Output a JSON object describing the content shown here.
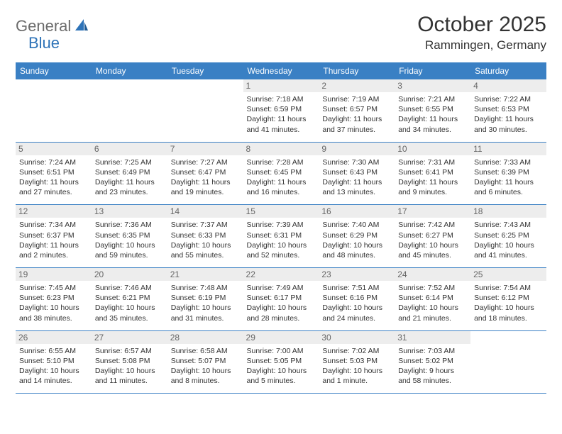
{
  "logo": {
    "general": "General",
    "blue": "Blue"
  },
  "title": "October 2025",
  "location": "Rammingen, Germany",
  "colors": {
    "header_bg": "#3a80c4",
    "header_text": "#ffffff",
    "daynum_bg": "#ededed",
    "daynum_text": "#666666",
    "border": "#3a80c4",
    "logo_gray": "#6b6b6b",
    "logo_blue": "#2e73b8",
    "body_text": "#333333",
    "background": "#ffffff"
  },
  "typography": {
    "title_fontsize": 30,
    "location_fontsize": 17,
    "dayhead_fontsize": 12,
    "daynum_fontsize": 12,
    "cell_fontsize": 10.5,
    "logo_fontsize": 22
  },
  "layout": {
    "columns": 7,
    "rows": 5,
    "month_start_weekday": 3
  },
  "day_headers": [
    "Sunday",
    "Monday",
    "Tuesday",
    "Wednesday",
    "Thursday",
    "Friday",
    "Saturday"
  ],
  "days": [
    {
      "n": 1,
      "sunrise": "7:18 AM",
      "sunset": "6:59 PM",
      "daylight": "11 hours and 41 minutes."
    },
    {
      "n": 2,
      "sunrise": "7:19 AM",
      "sunset": "6:57 PM",
      "daylight": "11 hours and 37 minutes."
    },
    {
      "n": 3,
      "sunrise": "7:21 AM",
      "sunset": "6:55 PM",
      "daylight": "11 hours and 34 minutes."
    },
    {
      "n": 4,
      "sunrise": "7:22 AM",
      "sunset": "6:53 PM",
      "daylight": "11 hours and 30 minutes."
    },
    {
      "n": 5,
      "sunrise": "7:24 AM",
      "sunset": "6:51 PM",
      "daylight": "11 hours and 27 minutes."
    },
    {
      "n": 6,
      "sunrise": "7:25 AM",
      "sunset": "6:49 PM",
      "daylight": "11 hours and 23 minutes."
    },
    {
      "n": 7,
      "sunrise": "7:27 AM",
      "sunset": "6:47 PM",
      "daylight": "11 hours and 19 minutes."
    },
    {
      "n": 8,
      "sunrise": "7:28 AM",
      "sunset": "6:45 PM",
      "daylight": "11 hours and 16 minutes."
    },
    {
      "n": 9,
      "sunrise": "7:30 AM",
      "sunset": "6:43 PM",
      "daylight": "11 hours and 13 minutes."
    },
    {
      "n": 10,
      "sunrise": "7:31 AM",
      "sunset": "6:41 PM",
      "daylight": "11 hours and 9 minutes."
    },
    {
      "n": 11,
      "sunrise": "7:33 AM",
      "sunset": "6:39 PM",
      "daylight": "11 hours and 6 minutes."
    },
    {
      "n": 12,
      "sunrise": "7:34 AM",
      "sunset": "6:37 PM",
      "daylight": "11 hours and 2 minutes."
    },
    {
      "n": 13,
      "sunrise": "7:36 AM",
      "sunset": "6:35 PM",
      "daylight": "10 hours and 59 minutes."
    },
    {
      "n": 14,
      "sunrise": "7:37 AM",
      "sunset": "6:33 PM",
      "daylight": "10 hours and 55 minutes."
    },
    {
      "n": 15,
      "sunrise": "7:39 AM",
      "sunset": "6:31 PM",
      "daylight": "10 hours and 52 minutes."
    },
    {
      "n": 16,
      "sunrise": "7:40 AM",
      "sunset": "6:29 PM",
      "daylight": "10 hours and 48 minutes."
    },
    {
      "n": 17,
      "sunrise": "7:42 AM",
      "sunset": "6:27 PM",
      "daylight": "10 hours and 45 minutes."
    },
    {
      "n": 18,
      "sunrise": "7:43 AM",
      "sunset": "6:25 PM",
      "daylight": "10 hours and 41 minutes."
    },
    {
      "n": 19,
      "sunrise": "7:45 AM",
      "sunset": "6:23 PM",
      "daylight": "10 hours and 38 minutes."
    },
    {
      "n": 20,
      "sunrise": "7:46 AM",
      "sunset": "6:21 PM",
      "daylight": "10 hours and 35 minutes."
    },
    {
      "n": 21,
      "sunrise": "7:48 AM",
      "sunset": "6:19 PM",
      "daylight": "10 hours and 31 minutes."
    },
    {
      "n": 22,
      "sunrise": "7:49 AM",
      "sunset": "6:17 PM",
      "daylight": "10 hours and 28 minutes."
    },
    {
      "n": 23,
      "sunrise": "7:51 AM",
      "sunset": "6:16 PM",
      "daylight": "10 hours and 24 minutes."
    },
    {
      "n": 24,
      "sunrise": "7:52 AM",
      "sunset": "6:14 PM",
      "daylight": "10 hours and 21 minutes."
    },
    {
      "n": 25,
      "sunrise": "7:54 AM",
      "sunset": "6:12 PM",
      "daylight": "10 hours and 18 minutes."
    },
    {
      "n": 26,
      "sunrise": "6:55 AM",
      "sunset": "5:10 PM",
      "daylight": "10 hours and 14 minutes."
    },
    {
      "n": 27,
      "sunrise": "6:57 AM",
      "sunset": "5:08 PM",
      "daylight": "10 hours and 11 minutes."
    },
    {
      "n": 28,
      "sunrise": "6:58 AM",
      "sunset": "5:07 PM",
      "daylight": "10 hours and 8 minutes."
    },
    {
      "n": 29,
      "sunrise": "7:00 AM",
      "sunset": "5:05 PM",
      "daylight": "10 hours and 5 minutes."
    },
    {
      "n": 30,
      "sunrise": "7:02 AM",
      "sunset": "5:03 PM",
      "daylight": "10 hours and 1 minute."
    },
    {
      "n": 31,
      "sunrise": "7:03 AM",
      "sunset": "5:02 PM",
      "daylight": "9 hours and 58 minutes."
    }
  ],
  "labels": {
    "sunrise": "Sunrise:",
    "sunset": "Sunset:",
    "daylight": "Daylight:"
  }
}
